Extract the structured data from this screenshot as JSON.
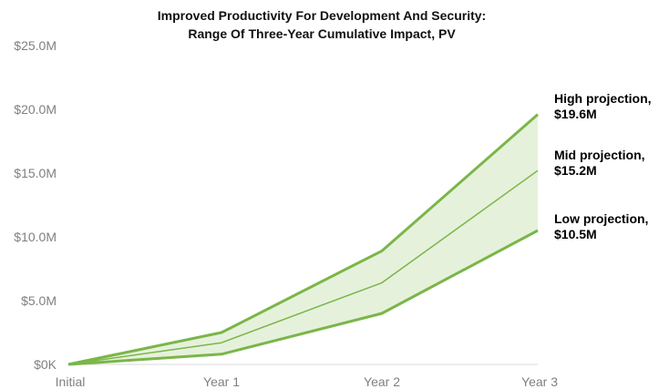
{
  "chart_data": {
    "type": "area",
    "title": "Improved Productivity For Development And Security:",
    "subtitle": "Range Of Three-Year Cumulative Impact, PV",
    "xlabel": "",
    "ylabel": "",
    "categories": [
      "Initial",
      "Year 1",
      "Year 2",
      "Year 3"
    ],
    "ylim": [
      0,
      25
    ],
    "y_ticks": [
      {
        "value": 0,
        "label": "$0K"
      },
      {
        "value": 5,
        "label": "$5.0M"
      },
      {
        "value": 10,
        "label": "$10.0M"
      },
      {
        "value": 15,
        "label": "$15.0M"
      },
      {
        "value": 20,
        "label": "$20.0M"
      },
      {
        "value": 25,
        "label": "$25.0M"
      }
    ],
    "grid": false,
    "legend": "none",
    "colors": {
      "line": "#7ab648",
      "band_fill": "#e6f1dc"
    },
    "series": [
      {
        "values": [
          0,
          2.5,
          8.9,
          19.6
        ],
        "label_line1": "High projection,",
        "label_line2": "$19.6M"
      },
      {
        "values": [
          0,
          1.7,
          6.4,
          15.2
        ],
        "label_line1": "Mid projection,",
        "label_line2": "$15.2M"
      },
      {
        "values": [
          0,
          0.8,
          4.0,
          10.5
        ],
        "label_line1": "Low projection,",
        "label_line2": "$10.5M"
      }
    ]
  }
}
